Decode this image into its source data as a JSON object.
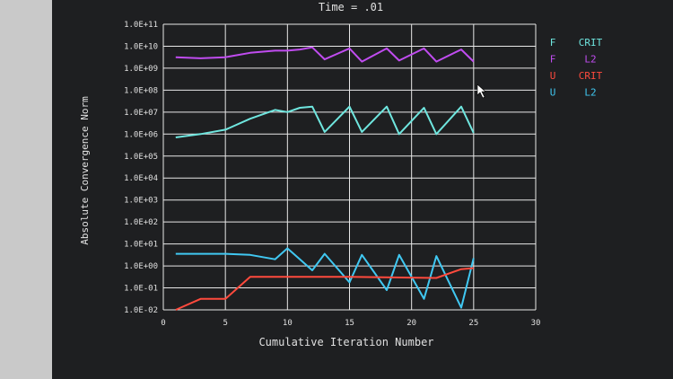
{
  "colors": {
    "screen_bg": "#1e1f21",
    "bezel": "#cfcfcf",
    "grid": "#e8e8e8",
    "text": "#e0e0e0",
    "f_crit": "#6fe6df",
    "f_l2": "#c04cf0",
    "u_crit": "#ff4a3d",
    "u_l2": "#40c8f2"
  },
  "chart_data": {
    "type": "line",
    "title": "Time = .01",
    "xlabel": "Cumulative Iteration Number",
    "ylabel": "Absolute Convergence Norm",
    "xlim": [
      0,
      30
    ],
    "ylim_log10": [
      -2,
      11
    ],
    "y_scale": "log",
    "grid": true,
    "legend_position": "right",
    "x_ticks": [
      "0",
      "5",
      "10",
      "15",
      "20",
      "25",
      "30"
    ],
    "y_ticks": [
      "1.0E-02",
      "1.0E-01",
      "1.0E+00",
      "1.0E+01",
      "1.0E+02",
      "1.0E+03",
      "1.0E+04",
      "1.0E+05",
      "1.0E+06",
      "1.0E+07",
      "1.0E+08",
      "1.0E+09",
      "1.0E+10",
      "1.0E+11"
    ],
    "series": [
      {
        "key": "f_l2",
        "prefix": "F",
        "name": "L2",
        "color": "#c04cf0",
        "x": [
          1,
          3,
          5,
          7,
          9,
          10,
          11,
          12,
          13,
          15,
          16,
          18,
          19,
          21,
          22,
          24,
          25
        ],
        "log10_y": [
          9.5,
          9.45,
          9.5,
          9.7,
          9.8,
          9.8,
          9.85,
          9.95,
          9.4,
          9.9,
          9.3,
          9.9,
          9.35,
          9.9,
          9.3,
          9.85,
          9.3
        ]
      },
      {
        "key": "f_crit",
        "prefix": "F",
        "name": "CRIT",
        "color": "#6fe6df",
        "x": [
          1,
          3,
          5,
          7,
          9,
          10,
          11,
          12,
          13,
          15,
          16,
          18,
          19,
          21,
          22,
          24,
          25
        ],
        "log10_y": [
          5.85,
          6.0,
          6.2,
          6.7,
          7.1,
          7.0,
          7.2,
          7.25,
          6.1,
          7.25,
          6.1,
          7.25,
          6.0,
          7.2,
          6.0,
          7.25,
          6.05
        ]
      },
      {
        "key": "u_l2",
        "prefix": "U",
        "name": "L2",
        "color": "#40c8f2",
        "x": [
          1,
          3,
          5,
          7,
          9,
          10,
          11,
          12,
          13,
          15,
          16,
          18,
          19,
          21,
          22,
          24,
          25
        ],
        "log10_y": [
          0.55,
          0.55,
          0.55,
          0.5,
          0.3,
          0.8,
          0.3,
          -0.2,
          0.55,
          -0.75,
          0.5,
          -1.1,
          0.5,
          -1.5,
          0.45,
          -1.9,
          0.35
        ]
      },
      {
        "key": "u_crit",
        "prefix": "U",
        "name": "CRIT",
        "color": "#ff4a3d",
        "x": [
          1,
          3,
          5,
          7,
          10,
          15,
          22,
          24,
          25
        ],
        "log10_y": [
          -2,
          -1.5,
          -1.5,
          -0.5,
          -0.5,
          -0.5,
          -0.55,
          -0.15,
          -0.1
        ]
      }
    ],
    "legend": [
      {
        "prefix": "F",
        "label": "CRIT",
        "color": "#6fe6df"
      },
      {
        "prefix": "F",
        "label": "L2",
        "color": "#c04cf0"
      },
      {
        "prefix": "U",
        "label": "CRIT",
        "color": "#ff4a3d"
      },
      {
        "prefix": "U",
        "label": "L2",
        "color": "#40c8f2"
      }
    ]
  }
}
